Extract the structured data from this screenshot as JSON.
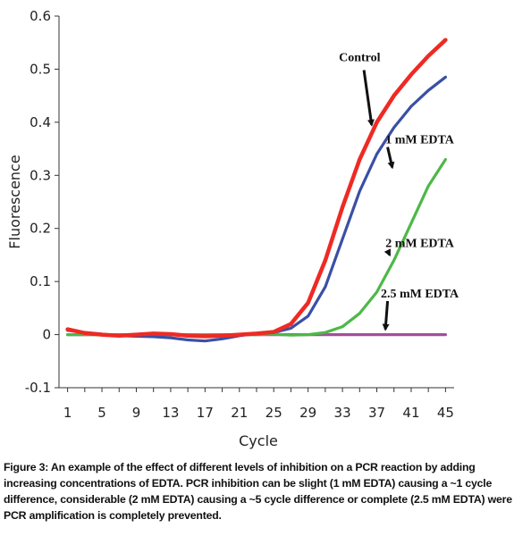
{
  "chart_data": {
    "type": "line",
    "xlabel": "Cycle",
    "ylabel": "Fluorescence",
    "xlim": [
      0,
      46
    ],
    "ylim": [
      -0.1,
      0.6
    ],
    "x_ticks": [
      1,
      5,
      9,
      13,
      17,
      21,
      25,
      29,
      33,
      37,
      41,
      45
    ],
    "y_ticks": [
      -0.1,
      0,
      0.1,
      0.2,
      0.3,
      0.4,
      0.5,
      0.6
    ],
    "y_tick_labels": [
      "-0.1",
      "0",
      "0.1",
      "0.2",
      "0.3",
      "0.4",
      "0.5",
      "0.6"
    ],
    "grid": false,
    "x": [
      1,
      3,
      5,
      7,
      9,
      11,
      13,
      15,
      17,
      19,
      21,
      23,
      25,
      27,
      29,
      31,
      33,
      35,
      37,
      39,
      41,
      43,
      45
    ],
    "series": [
      {
        "name": "Control",
        "color": "#ee2a24",
        "values": [
          0.01,
          0.003,
          0.0,
          -0.002,
          0.0,
          0.002,
          0.001,
          -0.002,
          -0.003,
          -0.002,
          0.0,
          0.002,
          0.005,
          0.02,
          0.06,
          0.14,
          0.24,
          0.33,
          0.4,
          0.45,
          0.49,
          0.525,
          0.555
        ]
      },
      {
        "name": "1 mM EDTA",
        "color": "#3a4fa5",
        "values": [
          0.008,
          0.004,
          0.001,
          -0.002,
          -0.003,
          -0.004,
          -0.006,
          -0.01,
          -0.012,
          -0.008,
          -0.002,
          0.002,
          0.004,
          0.012,
          0.035,
          0.09,
          0.18,
          0.27,
          0.34,
          0.39,
          0.43,
          0.46,
          0.485
        ]
      },
      {
        "name": "2 mM EDTA",
        "color": "#4db848",
        "values": [
          0.0,
          0.0,
          0.0,
          0.0,
          0.0,
          0.0,
          0.0,
          0.0,
          0.0,
          0.0,
          0.0,
          0.0,
          0.001,
          -0.001,
          0.0,
          0.004,
          0.015,
          0.04,
          0.08,
          0.14,
          0.21,
          0.28,
          0.33
        ]
      },
      {
        "name": "2.5 mM EDTA",
        "color": "#a34e9c",
        "values": [
          0.0,
          0.0,
          0.0,
          0.0,
          0.0,
          0.0,
          0.0,
          0.0,
          0.0,
          0.0,
          0.0,
          0.0,
          0.0,
          0.0,
          0.0,
          0.0,
          0.0,
          0.0,
          0.0,
          0.0,
          0.0,
          0.0,
          0.0
        ]
      }
    ],
    "annotations": [
      {
        "text": "Control",
        "x": 35.0,
        "y": 0.515,
        "arrow_to": [
          36.4,
          0.395
        ]
      },
      {
        "text": "1 mM EDTA",
        "x": 42.0,
        "y": 0.36,
        "arrow_to": [
          38.8,
          0.315
        ]
      },
      {
        "text": "2 mM EDTA",
        "x": 42.0,
        "y": 0.165,
        "arrow_to": [
          38.5,
          0.15
        ]
      },
      {
        "text": "2.5 mM EDTA",
        "x": 42.0,
        "y": 0.07,
        "arrow_to": [
          38.0,
          0.01
        ]
      }
    ]
  },
  "caption": "Figure 3: An example of the effect of different levels of inhibition on a PCR reaction by adding increasing concentrations of EDTA. PCR inhibition can be slight (1 mM EDTA) causing a ~1 cycle difference, considerable (2 mM EDTA) causing a ~5 cycle difference or complete (2.5 mM EDTA) were PCR amplification is completely prevented."
}
